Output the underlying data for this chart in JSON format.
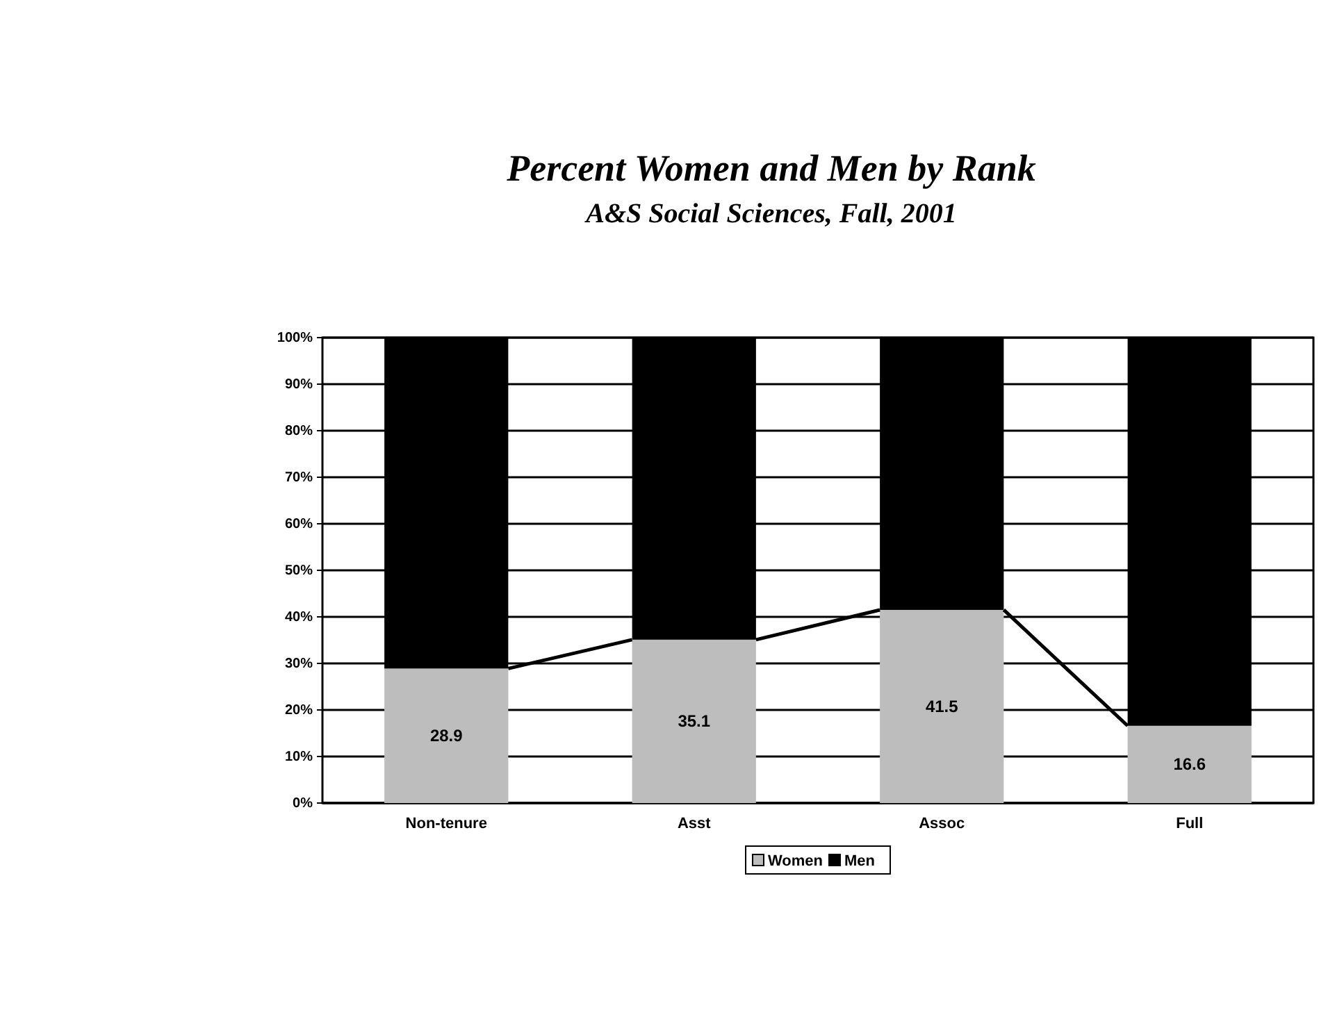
{
  "chart_data": {
    "type": "bar",
    "title": "Percent Women and Men by Rank",
    "subtitle": "A&S Social Sciences, Fall, 2001",
    "categories": [
      "Non-tenure",
      "Asst",
      "Assoc",
      "Full"
    ],
    "stacked": true,
    "series": [
      {
        "name": "Women",
        "color": "#bdbdbd",
        "values": [
          28.9,
          35.1,
          41.5,
          16.6
        ],
        "value_labels": [
          "28.9",
          "35.1",
          "41.5",
          "16.6"
        ]
      },
      {
        "name": "Men",
        "color": "#000000",
        "values": [
          71.1,
          64.9,
          58.5,
          83.4
        ]
      }
    ],
    "ylim": [
      0,
      100
    ],
    "yticks": [
      {
        "value": 0,
        "label": "0%"
      },
      {
        "value": 10,
        "label": "10%"
      },
      {
        "value": 20,
        "label": "20%"
      },
      {
        "value": 30,
        "label": "30%"
      },
      {
        "value": 40,
        "label": "40%"
      },
      {
        "value": 50,
        "label": "50%"
      },
      {
        "value": 60,
        "label": "60%"
      },
      {
        "value": 70,
        "label": "70%"
      },
      {
        "value": 80,
        "label": "80%"
      },
      {
        "value": 90,
        "label": "90%"
      },
      {
        "value": 100,
        "label": "100%"
      }
    ],
    "grid": "y",
    "legend": "bottom"
  }
}
